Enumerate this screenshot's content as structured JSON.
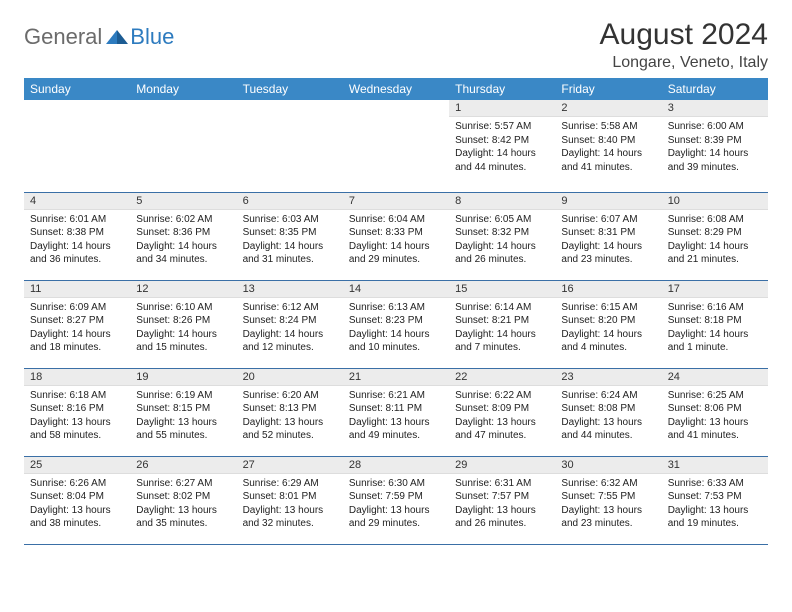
{
  "logo": {
    "text_general": "General",
    "text_blue": "Blue"
  },
  "title": "August 2024",
  "location": "Longare, Veneto, Italy",
  "styling": {
    "header_bg": "#3a88c6",
    "header_text": "#ffffff",
    "daynum_bg": "#ececec",
    "row_border": "#3a6fa6",
    "logo_gray": "#6b6b6b",
    "logo_blue": "#2d7bbf",
    "body_text": "#222222",
    "page_bg": "#ffffff",
    "month_fontsize": 30,
    "location_fontsize": 16,
    "weekday_fontsize": 12,
    "daynum_fontsize": 11,
    "body_fontsize": 10
  },
  "weekdays": [
    "Sunday",
    "Monday",
    "Tuesday",
    "Wednesday",
    "Thursday",
    "Friday",
    "Saturday"
  ],
  "weeks": [
    [
      null,
      null,
      null,
      null,
      {
        "n": "1",
        "sunrise": "5:57 AM",
        "sunset": "8:42 PM",
        "daylight": "14 hours and 44 minutes."
      },
      {
        "n": "2",
        "sunrise": "5:58 AM",
        "sunset": "8:40 PM",
        "daylight": "14 hours and 41 minutes."
      },
      {
        "n": "3",
        "sunrise": "6:00 AM",
        "sunset": "8:39 PM",
        "daylight": "14 hours and 39 minutes."
      }
    ],
    [
      {
        "n": "4",
        "sunrise": "6:01 AM",
        "sunset": "8:38 PM",
        "daylight": "14 hours and 36 minutes."
      },
      {
        "n": "5",
        "sunrise": "6:02 AM",
        "sunset": "8:36 PM",
        "daylight": "14 hours and 34 minutes."
      },
      {
        "n": "6",
        "sunrise": "6:03 AM",
        "sunset": "8:35 PM",
        "daylight": "14 hours and 31 minutes."
      },
      {
        "n": "7",
        "sunrise": "6:04 AM",
        "sunset": "8:33 PM",
        "daylight": "14 hours and 29 minutes."
      },
      {
        "n": "8",
        "sunrise": "6:05 AM",
        "sunset": "8:32 PM",
        "daylight": "14 hours and 26 minutes."
      },
      {
        "n": "9",
        "sunrise": "6:07 AM",
        "sunset": "8:31 PM",
        "daylight": "14 hours and 23 minutes."
      },
      {
        "n": "10",
        "sunrise": "6:08 AM",
        "sunset": "8:29 PM",
        "daylight": "14 hours and 21 minutes."
      }
    ],
    [
      {
        "n": "11",
        "sunrise": "6:09 AM",
        "sunset": "8:27 PM",
        "daylight": "14 hours and 18 minutes."
      },
      {
        "n": "12",
        "sunrise": "6:10 AM",
        "sunset": "8:26 PM",
        "daylight": "14 hours and 15 minutes."
      },
      {
        "n": "13",
        "sunrise": "6:12 AM",
        "sunset": "8:24 PM",
        "daylight": "14 hours and 12 minutes."
      },
      {
        "n": "14",
        "sunrise": "6:13 AM",
        "sunset": "8:23 PM",
        "daylight": "14 hours and 10 minutes."
      },
      {
        "n": "15",
        "sunrise": "6:14 AM",
        "sunset": "8:21 PM",
        "daylight": "14 hours and 7 minutes."
      },
      {
        "n": "16",
        "sunrise": "6:15 AM",
        "sunset": "8:20 PM",
        "daylight": "14 hours and 4 minutes."
      },
      {
        "n": "17",
        "sunrise": "6:16 AM",
        "sunset": "8:18 PM",
        "daylight": "14 hours and 1 minute."
      }
    ],
    [
      {
        "n": "18",
        "sunrise": "6:18 AM",
        "sunset": "8:16 PM",
        "daylight": "13 hours and 58 minutes."
      },
      {
        "n": "19",
        "sunrise": "6:19 AM",
        "sunset": "8:15 PM",
        "daylight": "13 hours and 55 minutes."
      },
      {
        "n": "20",
        "sunrise": "6:20 AM",
        "sunset": "8:13 PM",
        "daylight": "13 hours and 52 minutes."
      },
      {
        "n": "21",
        "sunrise": "6:21 AM",
        "sunset": "8:11 PM",
        "daylight": "13 hours and 49 minutes."
      },
      {
        "n": "22",
        "sunrise": "6:22 AM",
        "sunset": "8:09 PM",
        "daylight": "13 hours and 47 minutes."
      },
      {
        "n": "23",
        "sunrise": "6:24 AM",
        "sunset": "8:08 PM",
        "daylight": "13 hours and 44 minutes."
      },
      {
        "n": "24",
        "sunrise": "6:25 AM",
        "sunset": "8:06 PM",
        "daylight": "13 hours and 41 minutes."
      }
    ],
    [
      {
        "n": "25",
        "sunrise": "6:26 AM",
        "sunset": "8:04 PM",
        "daylight": "13 hours and 38 minutes."
      },
      {
        "n": "26",
        "sunrise": "6:27 AM",
        "sunset": "8:02 PM",
        "daylight": "13 hours and 35 minutes."
      },
      {
        "n": "27",
        "sunrise": "6:29 AM",
        "sunset": "8:01 PM",
        "daylight": "13 hours and 32 minutes."
      },
      {
        "n": "28",
        "sunrise": "6:30 AM",
        "sunset": "7:59 PM",
        "daylight": "13 hours and 29 minutes."
      },
      {
        "n": "29",
        "sunrise": "6:31 AM",
        "sunset": "7:57 PM",
        "daylight": "13 hours and 26 minutes."
      },
      {
        "n": "30",
        "sunrise": "6:32 AM",
        "sunset": "7:55 PM",
        "daylight": "13 hours and 23 minutes."
      },
      {
        "n": "31",
        "sunrise": "6:33 AM",
        "sunset": "7:53 PM",
        "daylight": "13 hours and 19 minutes."
      }
    ]
  ],
  "labels": {
    "sunrise": "Sunrise:",
    "sunset": "Sunset:",
    "daylight": "Daylight:"
  }
}
